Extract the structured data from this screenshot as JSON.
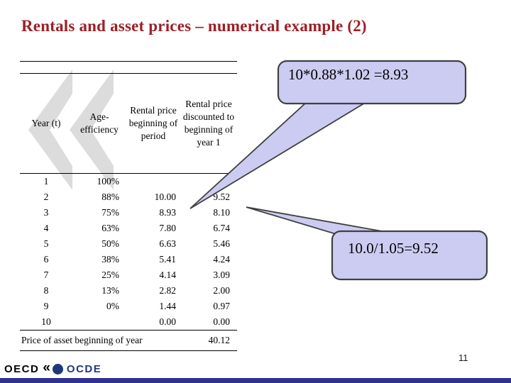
{
  "slide": {
    "title": "Rentals and asset prices – numerical example (2)",
    "page_number": "11"
  },
  "table": {
    "headers": [
      "Year (t)",
      "Age-efficiency",
      "Rental price beginning of period",
      "Rental price discounted to beginning of year 1"
    ],
    "rows": [
      [
        "1",
        "100%",
        "",
        ""
      ],
      [
        "2",
        "88%",
        "10.00",
        "9.52"
      ],
      [
        "3",
        "75%",
        "8.93",
        "8.10"
      ],
      [
        "4",
        "63%",
        "7.80",
        "6.74"
      ],
      [
        "5",
        "50%",
        "6.63",
        "5.46"
      ],
      [
        "6",
        "38%",
        "5.41",
        "4.24"
      ],
      [
        "7",
        "25%",
        "4.14",
        "3.09"
      ],
      [
        "8",
        "13%",
        "2.82",
        "2.00"
      ],
      [
        "9",
        "0%",
        "1.44",
        "0.97"
      ],
      [
        "10",
        "",
        "0.00",
        "0.00"
      ]
    ],
    "footer": {
      "label": "Price of asset beginning of year",
      "value": "40.12"
    }
  },
  "callouts": [
    {
      "text": "10*0.88*1.02 =8.93"
    },
    {
      "text": "10.0/1.05=9.52"
    }
  ],
  "logo": {
    "left_text": "OECD",
    "chevron_icon": "«",
    "right_text": "OCDE"
  },
  "colors": {
    "title_red": "#9a2127",
    "callout_fill": "#ccccf2",
    "callout_border": "#404040",
    "bottom_bar_blue": "#2e3192",
    "logo_navy": "#21377c",
    "watermark_gray": "#dcdcdc"
  }
}
